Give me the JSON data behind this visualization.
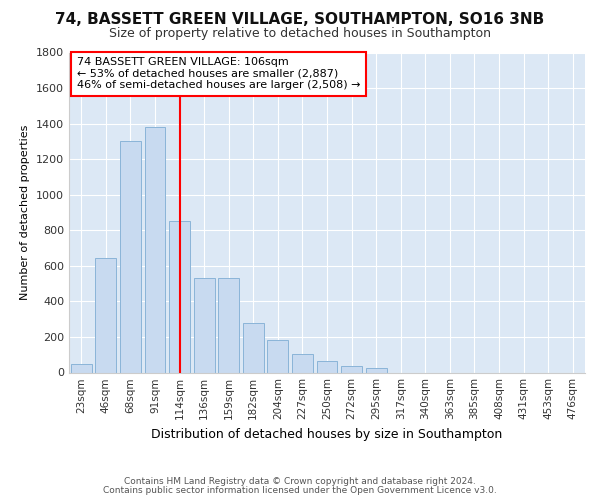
{
  "title1": "74, BASSETT GREEN VILLAGE, SOUTHAMPTON, SO16 3NB",
  "title2": "Size of property relative to detached houses in Southampton",
  "xlabel": "Distribution of detached houses by size in Southampton",
  "ylabel": "Number of detached properties",
  "bar_color": "#c8daf0",
  "bar_edge_color": "#8ab4d8",
  "bins": [
    "23sqm",
    "46sqm",
    "68sqm",
    "91sqm",
    "114sqm",
    "136sqm",
    "159sqm",
    "182sqm",
    "204sqm",
    "227sqm",
    "250sqm",
    "272sqm",
    "295sqm",
    "317sqm",
    "340sqm",
    "363sqm",
    "385sqm",
    "408sqm",
    "431sqm",
    "453sqm",
    "476sqm"
  ],
  "values": [
    50,
    645,
    1305,
    1380,
    850,
    530,
    530,
    278,
    183,
    105,
    65,
    35,
    25,
    0,
    0,
    0,
    0,
    0,
    0,
    0,
    0
  ],
  "property_bin_index": 4,
  "annotation_line1": "74 BASSETT GREEN VILLAGE: 106sqm",
  "annotation_line2": "← 53% of detached houses are smaller (2,887)",
  "annotation_line3": "46% of semi-detached houses are larger (2,508) →",
  "ylim": [
    0,
    1800
  ],
  "yticks": [
    0,
    200,
    400,
    600,
    800,
    1000,
    1200,
    1400,
    1600,
    1800
  ],
  "footer1": "Contains HM Land Registry data © Crown copyright and database right 2024.",
  "footer2": "Contains public sector information licensed under the Open Government Licence v3.0.",
  "bg_color": "#ffffff",
  "plot_bg_color": "#dce8f5",
  "grid_color": "#ffffff",
  "title1_fontsize": 11,
  "title2_fontsize": 9
}
